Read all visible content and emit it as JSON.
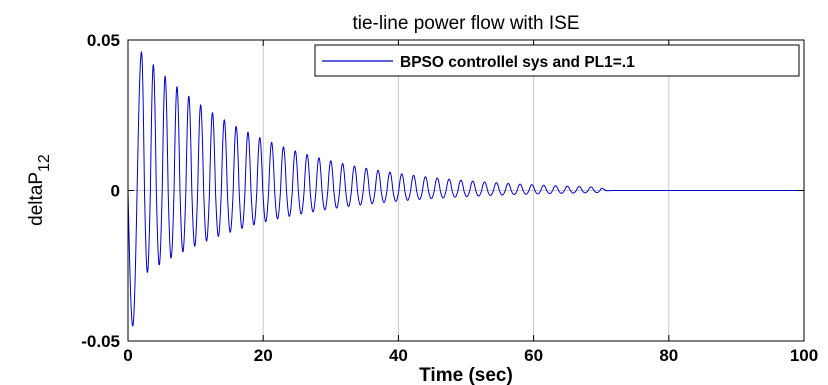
{
  "chart_data": {
    "type": "line",
    "title": "tie-line power flow with ISE",
    "xlabel": "Time (sec)",
    "ylabel": "deltaP",
    "ylabel_subscript": "12",
    "xlim": [
      0,
      100
    ],
    "ylim": [
      -0.05,
      0.05
    ],
    "xticks": [
      0,
      20,
      40,
      60,
      80,
      100
    ],
    "yticks": [
      -0.05,
      0,
      0.05
    ],
    "xtick_labels": [
      "0",
      "20",
      "40",
      "60",
      "80",
      "100"
    ],
    "ytick_labels": [
      "-0.05",
      "0",
      "0.05"
    ],
    "grid": true,
    "legend_position": "top-right",
    "series": [
      {
        "name": "BPSO controllel sys and PL1=.1",
        "color": "#0000cc",
        "signal": {
          "kind": "damped_oscillation",
          "period": 1.75,
          "decay_rate": 0.055,
          "first_trough": {
            "x": 0.7,
            "y": -0.045
          },
          "first_peak": {
            "x": 2.0,
            "y": 0.046
          },
          "settles_by_x": 70
        }
      }
    ]
  },
  "colors": {
    "line": "#0000cc",
    "grid": "#c8c8c8",
    "axes": "#000000",
    "zero_line": "#0000cc"
  }
}
